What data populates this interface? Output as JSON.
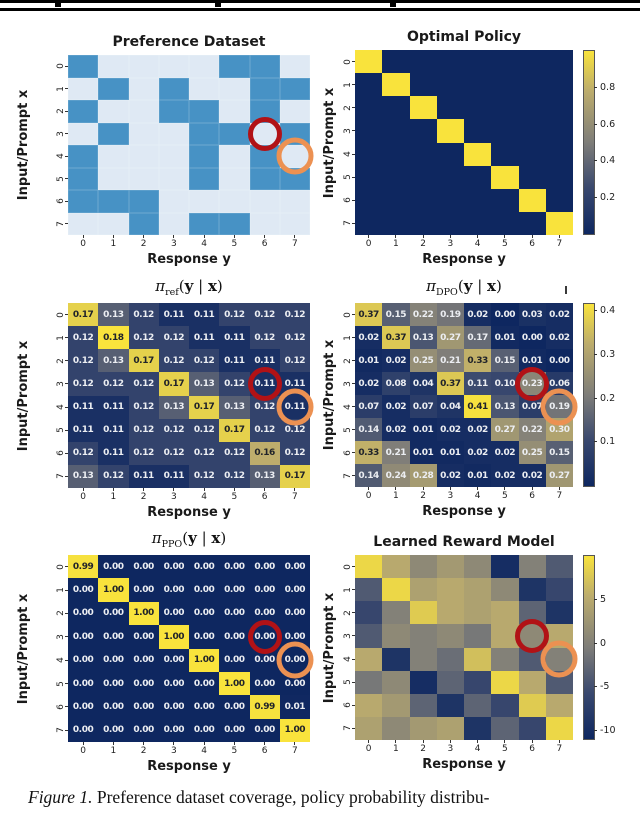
{
  "page": {
    "caption": {
      "prefix": "Figure 1.",
      "text": " Preference dataset coverage, policy probability distribu-"
    }
  },
  "colors": {
    "annotation_red": "#b11216",
    "annotation_orange": "#ec9152",
    "pref_low": "#dfe9f4",
    "pref_high": "#4792c5",
    "cividis_stops": [
      [
        0,
        "#0e2760"
      ],
      [
        0.25,
        "#39486e"
      ],
      [
        0.5,
        "#7e7d79"
      ],
      [
        0.78,
        "#bcac6d"
      ],
      [
        1,
        "#f9e33c"
      ]
    ]
  },
  "chart_data": [
    {
      "id": "preference-dataset",
      "type": "heatmap",
      "title": {
        "kind": "text",
        "text": "Preference Dataset"
      },
      "xlabel": "Response y",
      "ylabel": "Input/Prompt x",
      "xticks": [
        "0",
        "1",
        "2",
        "3",
        "4",
        "5",
        "6",
        "7"
      ],
      "yticks": [
        "0",
        "1",
        "2",
        "3",
        "4",
        "5",
        "6",
        "7"
      ],
      "colormap": "binary_blues",
      "vmin": 0,
      "vmax": 1,
      "show_cell_labels": false,
      "decimals": 0,
      "colorbar": null,
      "values": [
        [
          1,
          0,
          0,
          0,
          0,
          1,
          1,
          0
        ],
        [
          0,
          1,
          0,
          1,
          0,
          0,
          1,
          1
        ],
        [
          1,
          0,
          0,
          1,
          1,
          0,
          1,
          0
        ],
        [
          0,
          1,
          0,
          0,
          1,
          1,
          0,
          1
        ],
        [
          1,
          0,
          0,
          0,
          1,
          0,
          1,
          0
        ],
        [
          1,
          0,
          0,
          0,
          1,
          0,
          1,
          1
        ],
        [
          1,
          1,
          1,
          0,
          0,
          0,
          0,
          0
        ],
        [
          0,
          0,
          1,
          0,
          1,
          1,
          0,
          0
        ]
      ],
      "annotations": [
        {
          "shape": "circle",
          "color_key": "annotation_red",
          "row": 3,
          "col": 6,
          "size": 34
        },
        {
          "shape": "circle",
          "color_key": "annotation_orange",
          "row": 4,
          "col": 7,
          "size": 37
        }
      ]
    },
    {
      "id": "optimal-policy",
      "type": "heatmap",
      "title": {
        "kind": "text",
        "text": "Optimal Policy"
      },
      "xlabel": "Response y",
      "ylabel": "Input/Prompt x",
      "xticks": [
        "0",
        "1",
        "2",
        "3",
        "4",
        "5",
        "6",
        "7"
      ],
      "yticks": [
        "0",
        "1",
        "2",
        "3",
        "4",
        "5",
        "6",
        "7"
      ],
      "colormap": "cividis",
      "vmin": 0,
      "vmax": 1,
      "show_cell_labels": false,
      "decimals": 0,
      "colorbar": {
        "ticks": [
          "0.8",
          "0.6",
          "0.4",
          "0.2"
        ],
        "fracs": [
          0.2,
          0.4,
          0.6,
          0.8
        ]
      },
      "values": [
        [
          1,
          0,
          0,
          0,
          0,
          0,
          0,
          0
        ],
        [
          0,
          1,
          0,
          0,
          0,
          0,
          0,
          0
        ],
        [
          0,
          0,
          1,
          0,
          0,
          0,
          0,
          0
        ],
        [
          0,
          0,
          0,
          1,
          0,
          0,
          0,
          0
        ],
        [
          0,
          0,
          0,
          0,
          1,
          0,
          0,
          0
        ],
        [
          0,
          0,
          0,
          0,
          0,
          1,
          0,
          0
        ],
        [
          0,
          0,
          0,
          0,
          0,
          0,
          1,
          0
        ],
        [
          0,
          0,
          0,
          0,
          0,
          0,
          0,
          1
        ]
      ],
      "annotations": []
    },
    {
      "id": "pi-ref",
      "type": "heatmap",
      "title": {
        "kind": "math",
        "symbol": "π",
        "sub": "ref",
        "args": "(y | x)"
      },
      "xlabel": "Response y",
      "ylabel": "Input/Prompt x",
      "xticks": [
        "0",
        "1",
        "2",
        "3",
        "4",
        "5",
        "6",
        "7"
      ],
      "yticks": [
        "0",
        "1",
        "2",
        "3",
        "4",
        "5",
        "6",
        "7"
      ],
      "colormap": "cividis",
      "vmin": 0.105,
      "vmax": 0.175,
      "show_cell_labels": true,
      "decimals": 2,
      "colorbar": null,
      "values": [
        [
          0.17,
          0.13,
          0.12,
          0.11,
          0.11,
          0.12,
          0.12,
          0.12
        ],
        [
          0.12,
          0.18,
          0.12,
          0.12,
          0.11,
          0.11,
          0.12,
          0.12
        ],
        [
          0.12,
          0.13,
          0.17,
          0.12,
          0.12,
          0.11,
          0.11,
          0.12
        ],
        [
          0.12,
          0.12,
          0.12,
          0.17,
          0.13,
          0.12,
          0.11,
          0.11
        ],
        [
          0.11,
          0.11,
          0.12,
          0.13,
          0.17,
          0.13,
          0.12,
          0.11
        ],
        [
          0.11,
          0.11,
          0.12,
          0.12,
          0.12,
          0.17,
          0.12,
          0.12
        ],
        [
          0.12,
          0.11,
          0.12,
          0.12,
          0.12,
          0.12,
          0.16,
          0.12
        ],
        [
          0.13,
          0.12,
          0.11,
          0.11,
          0.12,
          0.12,
          0.13,
          0.17
        ]
      ],
      "annotations": [
        {
          "shape": "circle",
          "color_key": "annotation_red",
          "row": 3,
          "col": 6,
          "size": 34
        },
        {
          "shape": "circle",
          "color_key": "annotation_orange",
          "row": 4,
          "col": 7,
          "size": 37
        }
      ]
    },
    {
      "id": "pi-dpo",
      "type": "heatmap",
      "title": {
        "kind": "math",
        "symbol": "π",
        "sub": "DPO",
        "args": "(y | x)"
      },
      "xlabel": "Response y",
      "ylabel": "Input/Prompt x",
      "xticks": [
        "0",
        "1",
        "2",
        "3",
        "4",
        "5",
        "6",
        "7"
      ],
      "yticks": [
        "0",
        "1",
        "2",
        "3",
        "4",
        "5",
        "6",
        "7"
      ],
      "colormap": "cividis",
      "vmin": 0,
      "vmax": 0.414,
      "show_cell_labels": true,
      "decimals": 2,
      "colorbar": {
        "ticks": [
          "0.4",
          "0.3",
          "0.2",
          "0.1"
        ],
        "fracs": [
          0.034,
          0.275,
          0.517,
          0.758
        ]
      },
      "values": [
        [
          0.37,
          0.15,
          0.22,
          0.19,
          0.02,
          0.0,
          0.03,
          0.02
        ],
        [
          0.02,
          0.37,
          0.13,
          0.27,
          0.17,
          0.01,
          0.0,
          0.02
        ],
        [
          0.01,
          0.02,
          0.25,
          0.21,
          0.33,
          0.15,
          0.01,
          0.0
        ],
        [
          0.02,
          0.08,
          0.04,
          0.37,
          0.11,
          0.1,
          0.23,
          0.06
        ],
        [
          0.07,
          0.02,
          0.07,
          0.04,
          0.41,
          0.13,
          0.07,
          0.19
        ],
        [
          0.14,
          0.02,
          0.01,
          0.02,
          0.02,
          0.27,
          0.22,
          0.3
        ],
        [
          0.33,
          0.21,
          0.01,
          0.01,
          0.02,
          0.02,
          0.25,
          0.15
        ],
        [
          0.14,
          0.24,
          0.28,
          0.02,
          0.01,
          0.02,
          0.02,
          0.27
        ]
      ],
      "annotations": [
        {
          "shape": "circle",
          "color_key": "annotation_red",
          "row": 3,
          "col": 6,
          "size": 34
        },
        {
          "shape": "circle",
          "color_key": "annotation_orange",
          "row": 4,
          "col": 7,
          "size": 37
        }
      ]
    },
    {
      "id": "pi-ppo",
      "type": "heatmap",
      "title": {
        "kind": "math",
        "symbol": "π",
        "sub": "PPO",
        "args": "(y | x)"
      },
      "xlabel": "Response y",
      "ylabel": "Input/Prompt x",
      "xticks": [
        "0",
        "1",
        "2",
        "3",
        "4",
        "5",
        "6",
        "7"
      ],
      "yticks": [
        "0",
        "1",
        "2",
        "3",
        "4",
        "5",
        "6",
        "7"
      ],
      "colormap": "cividis",
      "vmin": 0,
      "vmax": 1,
      "show_cell_labels": true,
      "decimals": 2,
      "colorbar": null,
      "values": [
        [
          0.99,
          0.0,
          0.0,
          0.0,
          0.0,
          0.0,
          0.0,
          0.0
        ],
        [
          0.0,
          1.0,
          0.0,
          0.0,
          0.0,
          0.0,
          0.0,
          0.0
        ],
        [
          0.0,
          0.0,
          1.0,
          0.0,
          0.0,
          0.0,
          0.0,
          0.0
        ],
        [
          0.0,
          0.0,
          0.0,
          1.0,
          0.0,
          0.0,
          0.0,
          0.0
        ],
        [
          0.0,
          0.0,
          0.0,
          0.0,
          1.0,
          0.0,
          0.0,
          0.0
        ],
        [
          0.0,
          0.0,
          0.0,
          0.0,
          0.0,
          1.0,
          0.0,
          0.0
        ],
        [
          0.0,
          0.0,
          0.0,
          0.0,
          0.0,
          0.0,
          0.99,
          0.01
        ],
        [
          0.0,
          0.0,
          0.0,
          0.0,
          0.0,
          0.0,
          0.0,
          1.0
        ]
      ],
      "annotations": [
        {
          "shape": "circle",
          "color_key": "annotation_red",
          "row": 3,
          "col": 6,
          "size": 34
        },
        {
          "shape": "circle",
          "color_key": "annotation_orange",
          "row": 4,
          "col": 7,
          "size": 37
        }
      ]
    },
    {
      "id": "learned-reward-model",
      "type": "heatmap",
      "title": {
        "kind": "text",
        "text": "Learned Reward Model"
      },
      "xlabel": "Response y",
      "ylabel": "Input/Prompt x",
      "xticks": [
        "0",
        "1",
        "2",
        "3",
        "4",
        "5",
        "6",
        "7"
      ],
      "yticks": [
        "0",
        "1",
        "2",
        "3",
        "4",
        "5",
        "6",
        "7"
      ],
      "colormap": "cividis",
      "vmin": -11,
      "vmax": 10,
      "show_cell_labels": false,
      "decimals": 0,
      "colorbar": {
        "ticks": [
          "5",
          "0",
          "-5",
          "-10"
        ],
        "fracs": [
          0.238,
          0.476,
          0.714,
          0.952
        ]
      },
      "values": [
        [
          9,
          5,
          1,
          3,
          1,
          -10,
          0,
          -4
        ],
        [
          -4,
          9,
          4,
          5,
          4,
          1,
          -9,
          -6
        ],
        [
          -6,
          0,
          8,
          5,
          4,
          5,
          -3,
          -9
        ],
        [
          -4,
          1,
          0,
          1,
          -1,
          5,
          1,
          5
        ],
        [
          5,
          -9,
          0,
          -2,
          7,
          0,
          -4,
          0
        ],
        [
          -1,
          1,
          -10,
          -3,
          -6,
          9,
          5,
          -4
        ],
        [
          5,
          3,
          -3,
          -9,
          -3,
          -6,
          8,
          5
        ],
        [
          4,
          1,
          3,
          4,
          -9,
          -3,
          -6,
          9
        ]
      ],
      "annotations": [
        {
          "shape": "circle",
          "color_key": "annotation_red",
          "row": 3,
          "col": 6,
          "size": 34
        },
        {
          "shape": "circle",
          "color_key": "annotation_orange",
          "row": 4,
          "col": 7,
          "size": 37
        }
      ]
    }
  ]
}
